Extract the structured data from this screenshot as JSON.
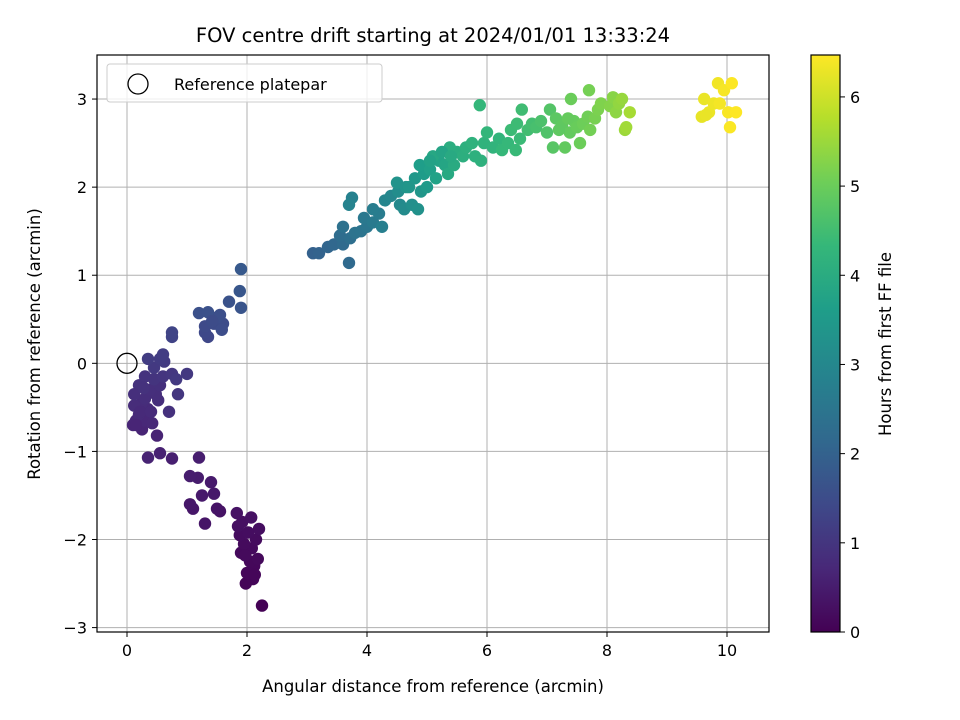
{
  "chart_data": {
    "type": "scatter",
    "title": "FOV centre drift starting at 2024/01/01 13:33:24",
    "xlabel": "Angular distance from reference (arcmin)",
    "ylabel": "Rotation from reference (arcmin)",
    "xlim": [
      -0.5,
      10.7
    ],
    "ylim": [
      -3.05,
      3.5
    ],
    "xticks": [
      0,
      2,
      4,
      6,
      8,
      10
    ],
    "yticks": [
      -3,
      -2,
      -1,
      0,
      1,
      2,
      3
    ],
    "xtick_labels": [
      "0",
      "2",
      "4",
      "6",
      "8",
      "10"
    ],
    "ytick_labels": [
      "−3",
      "−2",
      "−1",
      "0",
      "1",
      "2",
      "3"
    ],
    "grid": true,
    "legend": {
      "placement": "top-left",
      "label": "Reference platepar"
    },
    "reference_point": {
      "x": 0,
      "y": 0
    },
    "colorbar": {
      "label": "Hours from first FF file",
      "colormap": "viridis",
      "range": [
        0,
        6.47
      ],
      "ticks": [
        0,
        1,
        2,
        3,
        4,
        5,
        6
      ],
      "tick_labels": [
        "0",
        "1",
        "2",
        "3",
        "4",
        "5",
        "6"
      ],
      "colors": [
        "#440154",
        "#482878",
        "#3e4989",
        "#31688e",
        "#26828e",
        "#1f9e89",
        "#35b779",
        "#6ece58",
        "#b5de2b",
        "#fde725"
      ]
    },
    "series": [
      {
        "points": [
          [
            2.25,
            -2.75,
            0.02
          ],
          [
            1.98,
            -2.5,
            0.05
          ],
          [
            2.1,
            -2.45,
            0.07
          ],
          [
            2.0,
            -2.38,
            0.09
          ],
          [
            2.12,
            -2.3,
            0.11
          ],
          [
            2.05,
            -2.25,
            0.12
          ],
          [
            2.18,
            -2.22,
            0.14
          ],
          [
            1.9,
            -2.15,
            0.15
          ],
          [
            2.08,
            -2.1,
            0.17
          ],
          [
            1.95,
            -2.05,
            0.18
          ],
          [
            2.15,
            -2.0,
            0.2
          ],
          [
            1.88,
            -1.95,
            0.21
          ],
          [
            2.02,
            -1.92,
            0.23
          ],
          [
            2.2,
            -1.88,
            0.24
          ],
          [
            1.85,
            -1.85,
            0.26
          ],
          [
            1.92,
            -1.8,
            0.28
          ],
          [
            2.07,
            -1.75,
            0.29
          ],
          [
            1.83,
            -1.7,
            0.31
          ],
          [
            2.13,
            -2.4,
            0.1
          ],
          [
            1.97,
            -2.18,
            0.16
          ],
          [
            1.55,
            -1.68,
            0.33
          ],
          [
            1.5,
            -1.65,
            0.35
          ],
          [
            1.3,
            -1.82,
            0.37
          ],
          [
            1.1,
            -1.65,
            0.39
          ],
          [
            1.05,
            -1.6,
            0.41
          ],
          [
            1.45,
            -1.48,
            0.43
          ],
          [
            1.25,
            -1.5,
            0.45
          ],
          [
            1.4,
            -1.35,
            0.47
          ],
          [
            1.18,
            -1.3,
            0.49
          ],
          [
            1.05,
            -1.28,
            0.51
          ],
          [
            1.2,
            -1.07,
            0.53
          ],
          [
            0.75,
            -1.08,
            0.56
          ],
          [
            0.55,
            -1.02,
            0.59
          ],
          [
            0.35,
            -1.07,
            0.62
          ],
          [
            0.5,
            -0.82,
            0.64
          ],
          [
            0.25,
            -0.75,
            0.66
          ],
          [
            0.1,
            -0.7,
            0.68
          ],
          [
            0.15,
            -0.65,
            0.7
          ],
          [
            0.3,
            -0.65,
            0.72
          ],
          [
            0.42,
            -0.68,
            0.74
          ],
          [
            0.2,
            -0.58,
            0.76
          ],
          [
            0.35,
            -0.52,
            0.78
          ],
          [
            0.25,
            -0.45,
            0.8
          ],
          [
            0.12,
            -0.48,
            0.82
          ],
          [
            0.3,
            -0.4,
            0.84
          ],
          [
            0.48,
            -0.35,
            0.86
          ],
          [
            0.38,
            -0.3,
            0.88
          ],
          [
            0.55,
            -0.25,
            0.9
          ],
          [
            0.7,
            -0.55,
            0.92
          ],
          [
            0.2,
            -0.25,
            0.94
          ],
          [
            0.3,
            -0.15,
            0.96
          ],
          [
            0.45,
            -0.18,
            0.98
          ],
          [
            0.6,
            -0.15,
            1.0
          ],
          [
            0.85,
            -0.35,
            1.02
          ],
          [
            0.75,
            -0.12,
            1.04
          ],
          [
            1.0,
            -0.12,
            1.06
          ],
          [
            0.82,
            -0.18,
            1.08
          ],
          [
            0.45,
            -0.05,
            1.1
          ],
          [
            0.62,
            0.02,
            1.12
          ],
          [
            0.55,
            0.05,
            1.14
          ],
          [
            0.35,
            0.05,
            1.16
          ],
          [
            0.6,
            0.1,
            1.18
          ],
          [
            0.15,
            -0.7,
            0.67
          ],
          [
            0.22,
            -0.55,
            0.77
          ],
          [
            0.4,
            -0.55,
            0.79
          ],
          [
            0.52,
            -0.42,
            0.85
          ],
          [
            0.12,
            -0.35,
            0.87
          ],
          [
            0.28,
            -0.28,
            0.93
          ],
          [
            0.75,
            0.3,
            1.3
          ],
          [
            0.75,
            0.35,
            1.32
          ],
          [
            1.35,
            0.3,
            1.4
          ],
          [
            1.3,
            0.35,
            1.42
          ],
          [
            1.3,
            0.42,
            1.45
          ],
          [
            1.45,
            0.45,
            1.48
          ],
          [
            1.6,
            0.45,
            1.5
          ],
          [
            1.58,
            0.38,
            1.52
          ],
          [
            1.5,
            0.52,
            1.55
          ],
          [
            1.55,
            0.55,
            1.57
          ],
          [
            1.2,
            0.57,
            1.6
          ],
          [
            1.35,
            0.58,
            1.62
          ],
          [
            1.7,
            0.7,
            1.65
          ],
          [
            1.9,
            0.63,
            1.7
          ],
          [
            1.88,
            0.82,
            1.75
          ],
          [
            1.9,
            1.07,
            1.8
          ],
          [
            1.42,
            0.48,
            1.5
          ],
          [
            3.1,
            1.25,
            2.0
          ],
          [
            3.2,
            1.25,
            2.05
          ],
          [
            3.35,
            1.32,
            2.1
          ],
          [
            3.45,
            1.35,
            2.15
          ],
          [
            3.7,
            1.14,
            2.2
          ],
          [
            3.6,
            1.35,
            2.25
          ],
          [
            3.55,
            1.45,
            2.3
          ],
          [
            3.72,
            1.42,
            2.35
          ],
          [
            3.6,
            1.55,
            2.4
          ],
          [
            3.8,
            1.48,
            2.45
          ],
          [
            3.9,
            1.5,
            2.5
          ],
          [
            4.0,
            1.55,
            2.55
          ],
          [
            3.95,
            1.65,
            2.6
          ],
          [
            4.1,
            1.6,
            2.65
          ],
          [
            4.2,
            1.7,
            2.7
          ],
          [
            4.1,
            1.75,
            2.75
          ],
          [
            4.25,
            1.55,
            2.8
          ],
          [
            3.75,
            1.88,
            2.85
          ],
          [
            3.7,
            1.8,
            2.9
          ],
          [
            4.3,
            1.85,
            2.95
          ],
          [
            4.4,
            1.9,
            3.0
          ],
          [
            4.55,
            1.8,
            3.05
          ],
          [
            4.62,
            1.75,
            3.1
          ],
          [
            4.52,
            1.95,
            3.15
          ],
          [
            4.75,
            1.8,
            3.2
          ],
          [
            4.85,
            1.75,
            3.25
          ],
          [
            4.5,
            2.05,
            3.3
          ],
          [
            4.65,
            2.0,
            3.35
          ],
          [
            4.9,
            1.95,
            3.4
          ],
          [
            4.8,
            2.1,
            3.45
          ],
          [
            5.0,
            2.0,
            3.5
          ],
          [
            4.95,
            2.15,
            3.55
          ],
          [
            4.88,
            2.25,
            3.6
          ],
          [
            5.05,
            2.2,
            3.65
          ],
          [
            5.15,
            2.1,
            3.7
          ],
          [
            5.2,
            2.3,
            3.75
          ],
          [
            5.3,
            2.25,
            3.8
          ],
          [
            5.1,
            2.35,
            3.85
          ],
          [
            5.35,
            2.15,
            3.9
          ],
          [
            5.45,
            2.25,
            3.95
          ],
          [
            5.5,
            2.4,
            4.0
          ],
          [
            5.38,
            2.45,
            4.02
          ],
          [
            5.6,
            2.35,
            4.05
          ],
          [
            5.65,
            2.45,
            4.08
          ],
          [
            5.8,
            2.35,
            4.1
          ],
          [
            5.9,
            2.3,
            4.12
          ],
          [
            5.75,
            2.5,
            4.15
          ],
          [
            5.95,
            2.5,
            4.18
          ],
          [
            6.1,
            2.45,
            4.2
          ],
          [
            6.2,
            2.55,
            4.22
          ],
          [
            6.0,
            2.62,
            4.25
          ],
          [
            5.88,
            2.93,
            4.28
          ],
          [
            6.25,
            2.42,
            4.3
          ],
          [
            6.35,
            2.5,
            4.32
          ],
          [
            6.48,
            2.42,
            4.35
          ],
          [
            6.55,
            2.55,
            4.38
          ],
          [
            6.4,
            2.65,
            4.4
          ],
          [
            6.5,
            2.72,
            4.42
          ],
          [
            6.58,
            2.88,
            4.45
          ],
          [
            6.68,
            2.65,
            4.48
          ],
          [
            6.75,
            2.72,
            4.5
          ],
          [
            5.05,
            2.3,
            3.72
          ],
          [
            5.25,
            2.4,
            3.78
          ],
          [
            4.7,
            2.0,
            3.38
          ],
          [
            5.4,
            2.35,
            3.92
          ],
          [
            6.82,
            2.68,
            4.55
          ],
          [
            6.9,
            2.75,
            4.6
          ],
          [
            7.0,
            2.62,
            4.65
          ],
          [
            7.05,
            2.88,
            4.7
          ],
          [
            7.1,
            2.45,
            4.75
          ],
          [
            7.15,
            2.78,
            4.8
          ],
          [
            7.25,
            2.7,
            4.85
          ],
          [
            7.3,
            2.45,
            4.88
          ],
          [
            7.38,
            2.62,
            4.9
          ],
          [
            7.45,
            2.75,
            4.93
          ],
          [
            7.5,
            2.68,
            4.96
          ],
          [
            7.4,
            3.0,
            4.98
          ],
          [
            7.55,
            2.5,
            5.0
          ],
          [
            7.6,
            2.72,
            5.02
          ],
          [
            7.68,
            2.8,
            5.05
          ],
          [
            7.72,
            2.65,
            5.08
          ],
          [
            7.7,
            3.1,
            5.1
          ],
          [
            7.8,
            2.78,
            5.13
          ],
          [
            7.85,
            2.88,
            5.16
          ],
          [
            7.9,
            2.95,
            5.2
          ],
          [
            8.05,
            2.92,
            5.25
          ],
          [
            8.1,
            3.02,
            5.3
          ],
          [
            8.15,
            2.85,
            5.35
          ],
          [
            8.2,
            2.95,
            5.4
          ],
          [
            8.25,
            3.0,
            5.45
          ],
          [
            8.3,
            2.65,
            5.5
          ],
          [
            8.32,
            2.68,
            5.55
          ],
          [
            8.38,
            2.85,
            5.6
          ],
          [
            7.35,
            2.78,
            4.92
          ],
          [
            7.2,
            2.65,
            4.84
          ],
          [
            9.58,
            2.8,
            6.25
          ],
          [
            9.62,
            3.0,
            6.28
          ],
          [
            9.7,
            2.85,
            6.3
          ],
          [
            9.78,
            2.95,
            6.32
          ],
          [
            9.85,
            3.18,
            6.35
          ],
          [
            9.88,
            2.95,
            6.38
          ],
          [
            9.95,
            3.1,
            6.4
          ],
          [
            10.02,
            2.85,
            6.42
          ],
          [
            10.05,
            2.68,
            6.44
          ],
          [
            10.08,
            3.18,
            6.46
          ],
          [
            10.15,
            2.85,
            6.47
          ],
          [
            9.65,
            2.82,
            6.27
          ]
        ]
      }
    ]
  }
}
